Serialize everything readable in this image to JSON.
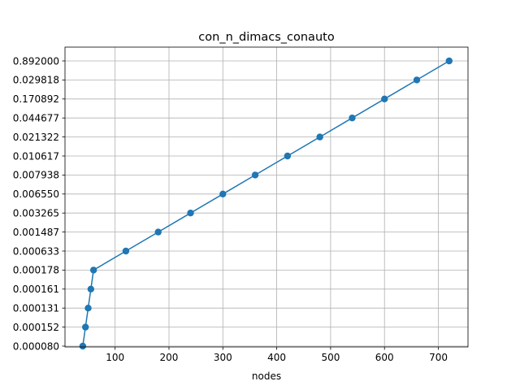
{
  "chart_data": {
    "type": "line",
    "title": "con_n_dimacs_conauto",
    "xlabel": "nodes",
    "ylabel": "",
    "grid": true,
    "y_scale": "categorical",
    "xlim": [
      7,
      755
    ],
    "x_ticks": [
      100,
      200,
      300,
      400,
      500,
      600,
      700
    ],
    "y_categories": [
      "0.000080",
      "0.000152",
      "0.000131",
      "0.000161",
      "0.000178",
      "0.000633",
      "0.001487",
      "0.003265",
      "0.006550",
      "0.007938",
      "0.010617",
      "0.021322",
      "0.044677",
      "0.170892",
      "0.029818",
      "0.892000"
    ],
    "series": [
      {
        "color": "#1f77b4",
        "markers": true,
        "points": [
          {
            "x": 40,
            "y": "0.000080"
          },
          {
            "x": 45,
            "y": "0.000152"
          },
          {
            "x": 50,
            "y": "0.000131"
          },
          {
            "x": 55,
            "y": "0.000161"
          },
          {
            "x": 60,
            "y": "0.000178"
          },
          {
            "x": 120,
            "y": "0.000633"
          },
          {
            "x": 180,
            "y": "0.001487"
          },
          {
            "x": 240,
            "y": "0.003265"
          },
          {
            "x": 300,
            "y": "0.006550"
          },
          {
            "x": 360,
            "y": "0.007938"
          },
          {
            "x": 420,
            "y": "0.010617"
          },
          {
            "x": 480,
            "y": "0.021322"
          },
          {
            "x": 540,
            "y": "0.044677"
          },
          {
            "x": 600,
            "y": "0.170892"
          },
          {
            "x": 660,
            "y": "0.029818"
          },
          {
            "x": 720,
            "y": "0.892000"
          }
        ]
      }
    ]
  }
}
